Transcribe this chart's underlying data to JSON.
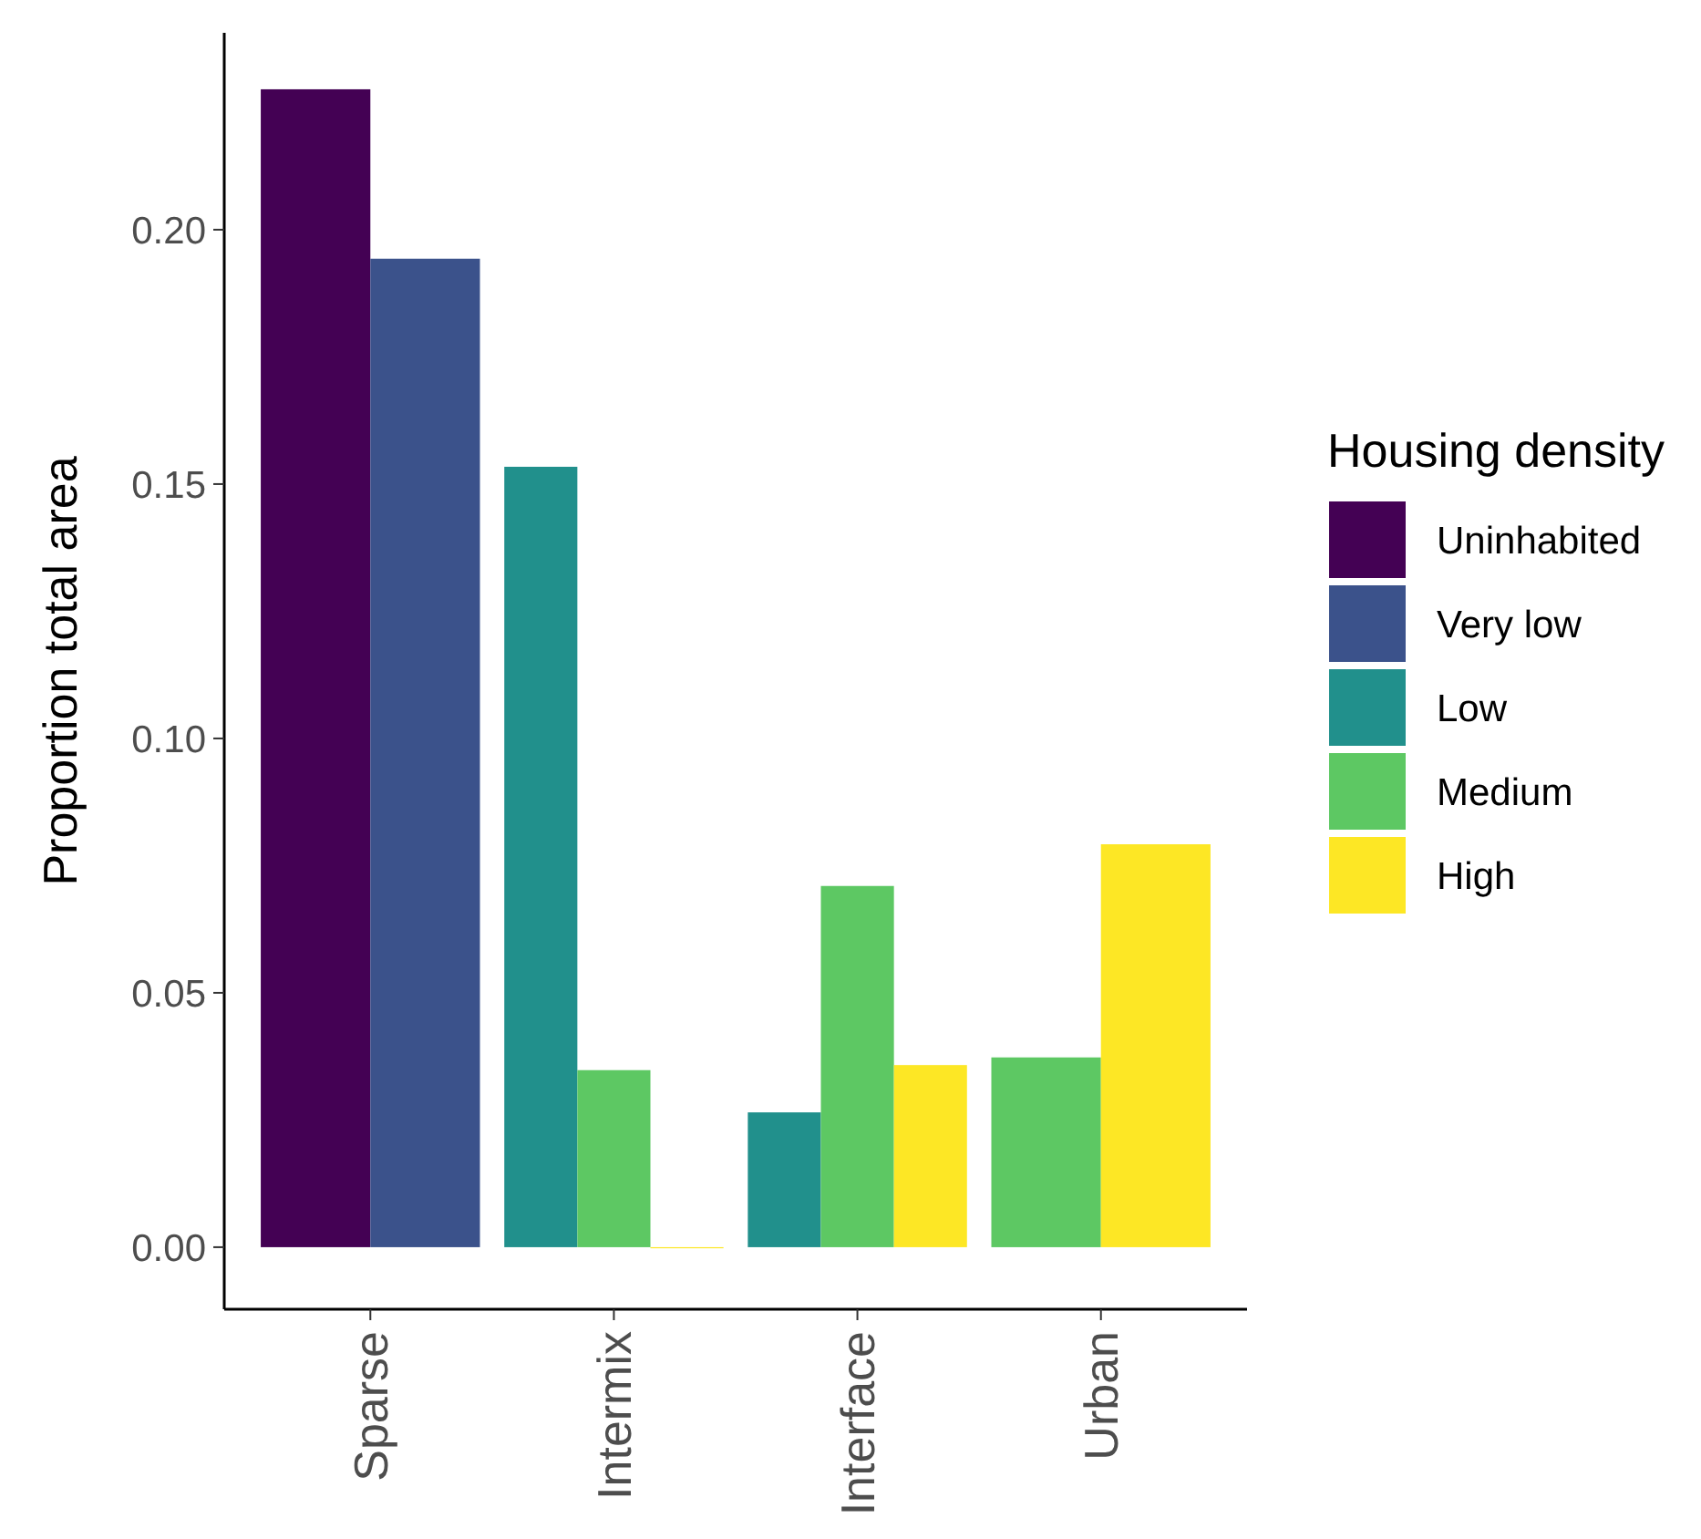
{
  "chart_data": {
    "type": "bar",
    "ylabel": "Proportion total area",
    "legend_title": "Housing density",
    "categories": [
      "Sparse",
      "Intermix",
      "Interface",
      "Urban"
    ],
    "series": [
      {
        "name": "Uninhabited",
        "color": "#440154",
        "values": [
          0.2276,
          null,
          null,
          null
        ]
      },
      {
        "name": "Very low",
        "color": "#3b528b",
        "values": [
          0.1943,
          null,
          null,
          null
        ]
      },
      {
        "name": "Low",
        "color": "#21908c",
        "values": [
          null,
          0.1534,
          0.0265,
          null
        ]
      },
      {
        "name": "Medium",
        "color": "#5dc863",
        "values": [
          null,
          0.0348,
          0.071,
          0.0373
        ]
      },
      {
        "name": "High",
        "color": "#fde725",
        "values": [
          null,
          0,
          0.0358,
          0.0792
        ]
      }
    ],
    "ylim": [
      -0.0122,
      0.2387
    ],
    "yticks": [
      {
        "value": 0,
        "label": "0.00"
      },
      {
        "value": 0.05,
        "label": "0.05"
      },
      {
        "value": 0.1,
        "label": "0.10"
      },
      {
        "value": 0.15,
        "label": "0.15"
      },
      {
        "value": 0.2,
        "label": "0.20"
      }
    ],
    "grid": false,
    "legend": "right"
  }
}
